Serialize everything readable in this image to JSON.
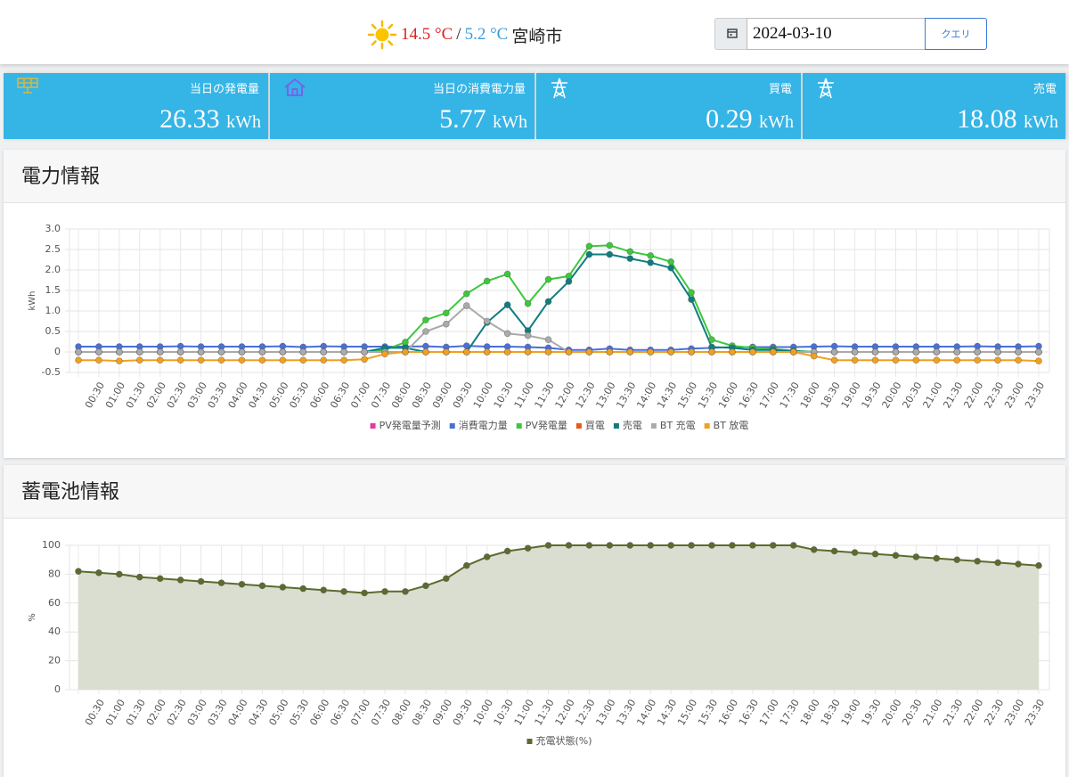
{
  "header": {
    "temp_high": "14.5 °C",
    "separator": "/",
    "temp_low": "5.2 °C",
    "city": "宮崎市",
    "date": "2024-03-10",
    "button": "クエリ"
  },
  "tiles": [
    {
      "label": "当日の発電量",
      "value": "26.33",
      "unit": "kWh"
    },
    {
      "label": "当日の消費電力量",
      "value": "5.77",
      "unit": "kWh"
    },
    {
      "label": "買電",
      "value": "0.29",
      "unit": "kWh"
    },
    {
      "label": "売電",
      "value": "18.08",
      "unit": "kWh"
    }
  ],
  "chart_data": [
    {
      "type": "line",
      "title": "電力情報",
      "y_label": "kWh",
      "categories": [
        null,
        "00:30",
        "01:00",
        "01:30",
        "02:00",
        "02:30",
        "03:00",
        "03:30",
        "04:00",
        "04:30",
        "05:00",
        "05:30",
        "06:00",
        "06:30",
        "07:00",
        "07:30",
        "08:00",
        "08:30",
        "09:00",
        "09:30",
        "10:00",
        "10:30",
        "11:00",
        "11:30",
        "12:00",
        "12:30",
        "13:00",
        "13:30",
        "14:00",
        "14:30",
        "15:00",
        "15:30",
        "16:00",
        "16:30",
        "17:00",
        "17:30",
        "18:00",
        "18:30",
        "19:00",
        "19:30",
        "20:00",
        "20:30",
        "21:00",
        "21:30",
        "22:00",
        "22:30",
        "23:00",
        "23:30"
      ],
      "ylim": [
        -0.5,
        3
      ],
      "yticks": [
        -0.5,
        0,
        0.5,
        {
          "value": 1,
          "label": "1.0"
        },
        1.5,
        {
          "value": 2,
          "label": "2.0"
        },
        2.5,
        {
          "value": 3,
          "label": "3.0"
        }
      ],
      "grid": true,
      "legend": "bottom",
      "series": [
        {
          "name": "PV発電量予測",
          "color": "#e6399b",
          "values": [
            null,
            null,
            null,
            null,
            null,
            null,
            null,
            null,
            null,
            null,
            null,
            null,
            null,
            null,
            null,
            null,
            null,
            null,
            null,
            null,
            null,
            null,
            null,
            null,
            null,
            null,
            null,
            null,
            null,
            null,
            null,
            null,
            null,
            null,
            null,
            null,
            null,
            null,
            null,
            null,
            null,
            null,
            null,
            null,
            null,
            null,
            null,
            null
          ]
        },
        {
          "name": "消費電力量",
          "color": "#4a6fd8",
          "values": [
            0.13,
            0.13,
            0.13,
            0.13,
            0.13,
            0.14,
            0.13,
            0.13,
            0.13,
            0.13,
            0.14,
            0.12,
            0.14,
            0.13,
            0.13,
            0.13,
            0.13,
            0.14,
            0.12,
            0.15,
            0.13,
            0.13,
            0.12,
            0.1,
            0.05,
            0.05,
            0.08,
            0.05,
            0.05,
            0.05,
            0.08,
            0.1,
            0.12,
            0.12,
            0.12,
            0.12,
            0.13,
            0.14,
            0.13,
            0.13,
            0.13,
            0.13,
            0.13,
            0.13,
            0.14,
            0.13,
            0.13,
            0.14
          ]
        },
        {
          "name": "PV発電量",
          "color": "#3cc83c",
          "values": [
            0,
            0,
            0,
            0,
            0,
            0,
            0,
            0,
            0,
            0,
            0,
            0,
            0,
            0,
            0,
            0.05,
            0.24,
            0.78,
            0.95,
            1.42,
            1.73,
            1.9,
            1.18,
            1.77,
            1.85,
            2.58,
            2.6,
            2.45,
            2.35,
            2.2,
            1.45,
            0.3,
            0.15,
            0.1,
            0.07,
            0.03,
            0,
            0,
            0,
            0,
            0,
            0,
            0,
            0,
            0,
            0,
            0,
            0
          ]
        },
        {
          "name": "買電",
          "color": "#e85a1a",
          "values": [
            0,
            0,
            0,
            0,
            0,
            0,
            0,
            0,
            0,
            0,
            0,
            0,
            0,
            0,
            0,
            0,
            0,
            0,
            0,
            0,
            0,
            0,
            0,
            0,
            0,
            0,
            0,
            0,
            0,
            0,
            0,
            0,
            0,
            0,
            0,
            0,
            0,
            0,
            0,
            0,
            0,
            0,
            0,
            0,
            0,
            0,
            0,
            0
          ]
        },
        {
          "name": "売電",
          "color": "#0f7d80",
          "values": [
            0,
            0,
            0,
            0,
            0,
            0,
            0,
            0,
            0,
            0,
            0,
            0,
            0,
            0,
            0,
            0.1,
            0.1,
            0,
            0,
            0,
            0.72,
            1.15,
            0.52,
            1.23,
            1.72,
            2.38,
            2.38,
            2.28,
            2.18,
            2.05,
            1.28,
            0.12,
            0.1,
            0.05,
            0.05,
            0.02,
            0,
            0,
            0,
            0,
            0,
            0,
            0,
            0,
            0,
            0,
            0,
            0
          ]
        },
        {
          "name": "BT 充電",
          "color": "#aaaaaa",
          "values": [
            0,
            0,
            0,
            0,
            0,
            0,
            0,
            0,
            0,
            0,
            0,
            0,
            0,
            0,
            0,
            0,
            0,
            0.5,
            0.68,
            1.13,
            0.75,
            0.45,
            0.4,
            0.3,
            0,
            0,
            0,
            0,
            0,
            0,
            0,
            0,
            0,
            0,
            0,
            0,
            0,
            0,
            0,
            0,
            0,
            0,
            0,
            0,
            0,
            0,
            0,
            0
          ]
        },
        {
          "name": "BT 放電",
          "color": "#f0a020",
          "values": [
            -0.2,
            -0.2,
            -0.22,
            -0.2,
            -0.2,
            -0.2,
            -0.2,
            -0.2,
            -0.2,
            -0.2,
            -0.2,
            -0.2,
            -0.2,
            -0.2,
            -0.18,
            -0.05,
            0,
            0,
            0,
            0,
            0,
            0,
            0,
            0,
            0,
            0,
            0,
            0,
            0,
            0,
            0,
            0,
            0,
            0,
            0,
            0,
            -0.1,
            -0.2,
            -0.2,
            -0.2,
            -0.2,
            -0.2,
            -0.2,
            -0.2,
            -0.2,
            -0.2,
            -0.2,
            -0.22
          ]
        }
      ]
    },
    {
      "type": "area",
      "title": "蓄電池情報",
      "y_label": "%",
      "categories": [
        null,
        "00:30",
        "01:00",
        "01:30",
        "02:00",
        "02:30",
        "03:00",
        "03:30",
        "04:00",
        "04:30",
        "05:00",
        "05:30",
        "06:00",
        "06:30",
        "07:00",
        "07:30",
        "08:00",
        "08:30",
        "09:00",
        "09:30",
        "10:00",
        "10:30",
        "11:00",
        "11:30",
        "12:00",
        "12:30",
        "13:00",
        "13:30",
        "14:00",
        "14:30",
        "15:00",
        "15:30",
        "16:00",
        "16:30",
        "17:00",
        "17:30",
        "18:00",
        "18:30",
        "19:00",
        "19:30",
        "20:00",
        "20:30",
        "21:00",
        "21:30",
        "22:00",
        "22:30",
        "23:00",
        "23:30"
      ],
      "ylim": [
        0,
        100
      ],
      "yticks": [
        0,
        20,
        40,
        60,
        80,
        100
      ],
      "grid": true,
      "legend": "bottom",
      "series": [
        {
          "name": "充電状態(%)",
          "color": "#5c6b2e",
          "fill_color": "#d9ded0",
          "values": [
            82,
            81,
            80,
            78,
            77,
            76,
            75,
            74,
            73,
            72,
            71,
            70,
            69,
            68,
            67,
            68,
            68,
            72,
            77,
            86,
            92,
            96,
            98,
            100,
            100,
            100,
            100,
            100,
            100,
            100,
            100,
            100,
            100,
            100,
            100,
            100,
            97,
            96,
            95,
            94,
            93,
            92,
            91,
            90,
            89,
            88,
            87,
            86
          ]
        }
      ]
    }
  ]
}
